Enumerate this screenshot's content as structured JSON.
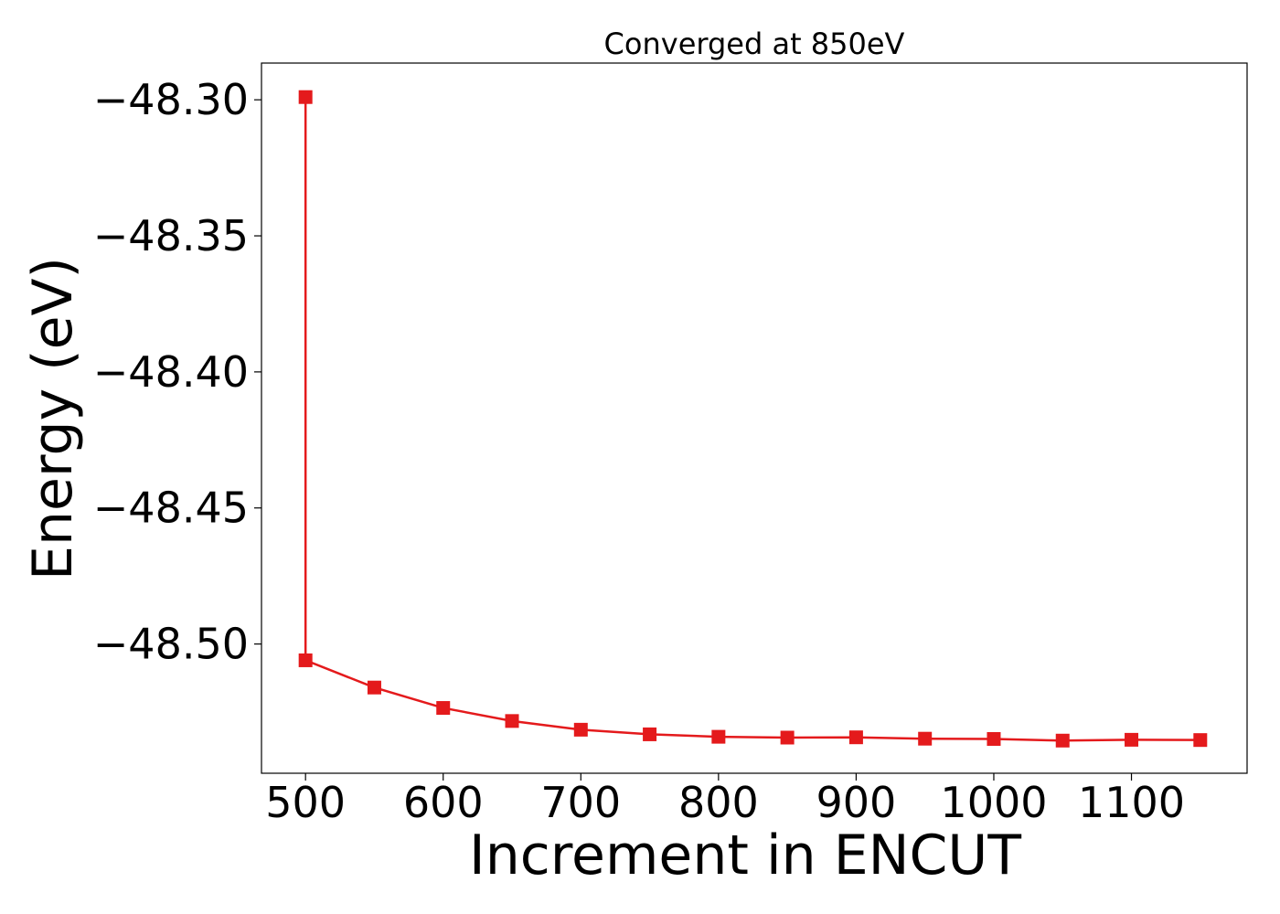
{
  "chart_data": {
    "type": "line",
    "title": "Converged at 850eV",
    "xlabel": "Increment in ENCUT",
    "ylabel": "Energy (eV)",
    "x": [
      500,
      500,
      550,
      600,
      650,
      700,
      750,
      800,
      850,
      900,
      950,
      1000,
      1050,
      1100,
      1150
    ],
    "series": [
      {
        "values": [
          -48.299,
          -48.506,
          -48.516,
          -48.5235,
          -48.5283,
          -48.5315,
          -48.5332,
          -48.5341,
          -48.5344,
          -48.5343,
          -48.5348,
          -48.5349,
          -48.5355,
          -48.5352,
          -48.5353
        ]
      }
    ],
    "xticks": [
      500,
      600,
      700,
      800,
      900,
      1000,
      1100
    ],
    "yticks": [
      -48.3,
      -48.35,
      -48.4,
      -48.45,
      -48.5
    ],
    "xtick_labels": [
      "500",
      "600",
      "700",
      "800",
      "900",
      "1000",
      "1100"
    ],
    "ytick_labels": [
      "−48.30",
      "−48.35",
      "−48.40",
      "−48.45",
      "−48.50"
    ],
    "xlim": [
      468,
      1184
    ],
    "ylim": [
      -48.5475,
      -48.2865
    ],
    "grid": false,
    "legend": "none",
    "marker": "square",
    "line_color": "#e41a1c"
  }
}
